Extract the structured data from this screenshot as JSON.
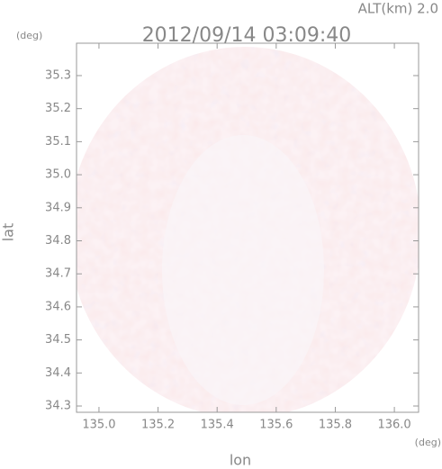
{
  "chart_data": {
    "type": "image",
    "title": "2012/09/14 03:09:40",
    "annotation": "ALT(km) 2.0",
    "x_label": "lon",
    "y_label": "lat",
    "x_unit": "(deg)",
    "y_unit": "(deg)",
    "xlim": [
      134.924,
      136.082
    ],
    "ylim": [
      34.281,
      35.398
    ],
    "xticks": [
      {
        "value": 135.0,
        "label": "135.0"
      },
      135.2,
      135.4,
      135.6,
      135.8,
      {
        "value": 136.0,
        "label": "136.0"
      }
    ],
    "yticks": [
      34.3,
      34.4,
      34.5,
      34.6,
      34.7,
      34.8,
      34.9,
      {
        "value": 35.0,
        "label": "35.0"
      },
      35.1,
      35.2,
      35.3
    ]
  }
}
